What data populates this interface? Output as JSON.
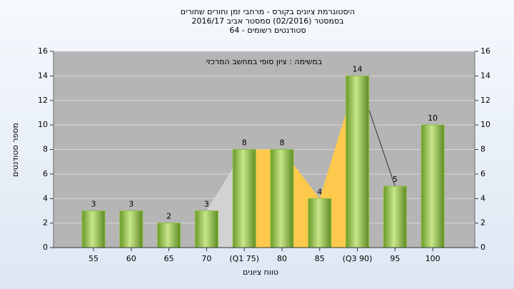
{
  "chart_data": {
    "type": "bar",
    "title_lines": [
      "היסטוגרמת ציונים בקורס - מרחבי זמן וחורים שחורים",
      "בסמסטר  (02/2016)  סמסטר אביב 2016/17",
      "סטודנטים רשומים - 64"
    ],
    "annotation": "במשימה : ציון סופי במחשב המרכזי",
    "x_label": "טווח ציונים",
    "y_label": "מספר סטודנטים",
    "categories": [
      "55",
      "60",
      "65",
      "70",
      "(Q1 75)",
      "80",
      "85",
      "(Q3 90)",
      "95",
      "100"
    ],
    "values": [
      3,
      3,
      2,
      3,
      8,
      8,
      4,
      14,
      5,
      10
    ],
    "color": "#8fbf3f",
    "area_color": "#ffc94d",
    "ylim": [
      0,
      16
    ],
    "yticks": [
      0,
      2,
      4,
      6,
      8,
      10,
      12,
      14,
      16
    ],
    "grid": true
  }
}
